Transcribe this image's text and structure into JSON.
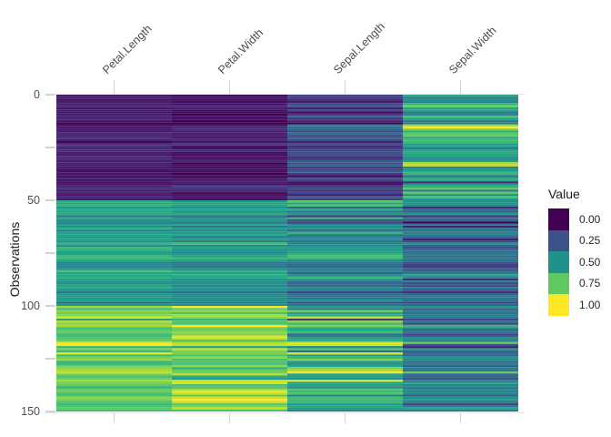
{
  "chart_data": {
    "type": "heatmap",
    "title": "",
    "x_categories": [
      "Petal.Length",
      "Petal.Width",
      "Sepal.Length",
      "Sepal.Width"
    ],
    "y_label": "Observations",
    "y_range": [
      0,
      150
    ],
    "n_rows": 150,
    "y_axis_ticks": [
      {
        "label": "0",
        "value": 0
      },
      {
        "label": "50",
        "value": 50
      },
      {
        "label": "100",
        "value": 100
      },
      {
        "label": "150",
        "value": 150
      }
    ],
    "y_axis_minor_ticks": [
      25,
      75,
      125
    ],
    "grid": false,
    "normalization": "per-column min-max scaling to [0,1]",
    "colormap": {
      "name": "viridis",
      "anchors": [
        "#440154",
        "#482475",
        "#414487",
        "#355f8d",
        "#2a788e",
        "#21918c",
        "#22a884",
        "#44bf70",
        "#7ad151",
        "#bddf26",
        "#fde725"
      ]
    },
    "legend": {
      "title": "Value",
      "position": "right",
      "entries": [
        {
          "label": "0.00",
          "value": 0.0
        },
        {
          "label": "0.25",
          "value": 0.25
        },
        {
          "label": "0.50",
          "value": 0.5
        },
        {
          "label": "0.75",
          "value": 0.75
        },
        {
          "label": "1.00",
          "value": 1.0
        }
      ]
    },
    "rows": [
      [
        1.4,
        0.2,
        5.1,
        3.5
      ],
      [
        1.4,
        0.2,
        4.9,
        3.0
      ],
      [
        1.3,
        0.2,
        4.7,
        3.2
      ],
      [
        1.5,
        0.2,
        4.6,
        3.1
      ],
      [
        1.4,
        0.2,
        5.0,
        3.6
      ],
      [
        1.7,
        0.4,
        5.4,
        3.9
      ],
      [
        1.4,
        0.3,
        4.6,
        3.4
      ],
      [
        1.5,
        0.2,
        5.0,
        3.4
      ],
      [
        1.4,
        0.2,
        4.4,
        2.9
      ],
      [
        1.5,
        0.1,
        4.9,
        3.1
      ],
      [
        1.5,
        0.2,
        5.4,
        3.7
      ],
      [
        1.6,
        0.2,
        4.8,
        3.4
      ],
      [
        1.4,
        0.1,
        4.8,
        3.0
      ],
      [
        1.1,
        0.1,
        4.3,
        3.0
      ],
      [
        1.2,
        0.2,
        5.8,
        4.0
      ],
      [
        1.5,
        0.4,
        5.7,
        4.4
      ],
      [
        1.3,
        0.4,
        5.4,
        3.9
      ],
      [
        1.4,
        0.3,
        5.1,
        3.5
      ],
      [
        1.7,
        0.3,
        5.7,
        3.8
      ],
      [
        1.5,
        0.3,
        5.1,
        3.8
      ],
      [
        1.7,
        0.2,
        5.4,
        3.4
      ],
      [
        1.5,
        0.4,
        5.1,
        3.7
      ],
      [
        1.0,
        0.2,
        4.6,
        3.6
      ],
      [
        1.7,
        0.5,
        5.1,
        3.3
      ],
      [
        1.9,
        0.2,
        4.8,
        3.4
      ],
      [
        1.6,
        0.2,
        5.0,
        3.0
      ],
      [
        1.6,
        0.4,
        5.0,
        3.4
      ],
      [
        1.5,
        0.2,
        5.2,
        3.5
      ],
      [
        1.4,
        0.2,
        5.2,
        3.4
      ],
      [
        1.6,
        0.2,
        4.7,
        3.2
      ],
      [
        1.6,
        0.2,
        4.8,
        3.1
      ],
      [
        1.5,
        0.4,
        5.4,
        3.4
      ],
      [
        1.5,
        0.1,
        5.2,
        4.1
      ],
      [
        1.4,
        0.2,
        5.5,
        4.2
      ],
      [
        1.5,
        0.2,
        4.9,
        3.1
      ],
      [
        1.2,
        0.2,
        5.0,
        3.2
      ],
      [
        1.3,
        0.2,
        5.5,
        3.5
      ],
      [
        1.4,
        0.1,
        4.9,
        3.6
      ],
      [
        1.3,
        0.2,
        4.4,
        3.0
      ],
      [
        1.5,
        0.2,
        5.1,
        3.4
      ],
      [
        1.3,
        0.3,
        5.0,
        3.5
      ],
      [
        1.3,
        0.3,
        4.5,
        2.3
      ],
      [
        1.3,
        0.2,
        4.4,
        3.2
      ],
      [
        1.6,
        0.6,
        5.0,
        3.5
      ],
      [
        1.9,
        0.4,
        5.1,
        3.8
      ],
      [
        1.4,
        0.3,
        4.8,
        3.0
      ],
      [
        1.6,
        0.2,
        5.1,
        3.8
      ],
      [
        1.4,
        0.2,
        4.6,
        3.2
      ],
      [
        1.5,
        0.2,
        5.3,
        3.7
      ],
      [
        1.4,
        0.2,
        5.0,
        3.3
      ],
      [
        4.7,
        1.4,
        7.0,
        3.2
      ],
      [
        4.5,
        1.5,
        6.4,
        3.2
      ],
      [
        4.9,
        1.5,
        6.9,
        3.1
      ],
      [
        4.0,
        1.3,
        5.5,
        2.3
      ],
      [
        4.6,
        1.5,
        6.5,
        2.8
      ],
      [
        4.5,
        1.3,
        5.7,
        2.8
      ],
      [
        4.7,
        1.6,
        6.3,
        3.3
      ],
      [
        3.3,
        1.0,
        4.9,
        2.4
      ],
      [
        4.6,
        1.3,
        6.6,
        2.9
      ],
      [
        3.9,
        1.4,
        5.2,
        2.7
      ],
      [
        3.5,
        1.0,
        5.0,
        2.0
      ],
      [
        4.2,
        1.5,
        5.9,
        3.0
      ],
      [
        4.0,
        1.0,
        6.0,
        2.2
      ],
      [
        4.7,
        1.4,
        6.1,
        2.9
      ],
      [
        3.6,
        1.3,
        5.6,
        2.9
      ],
      [
        4.4,
        1.4,
        6.7,
        3.1
      ],
      [
        4.5,
        1.5,
        5.6,
        3.0
      ],
      [
        4.1,
        1.0,
        5.8,
        2.7
      ],
      [
        4.5,
        1.5,
        6.2,
        2.2
      ],
      [
        3.9,
        1.1,
        5.6,
        2.5
      ],
      [
        4.8,
        1.8,
        5.9,
        3.2
      ],
      [
        4.0,
        1.3,
        6.1,
        2.8
      ],
      [
        4.9,
        1.5,
        6.3,
        2.5
      ],
      [
        4.7,
        1.2,
        6.1,
        2.8
      ],
      [
        4.3,
        1.3,
        6.4,
        2.9
      ],
      [
        4.4,
        1.4,
        6.6,
        3.0
      ],
      [
        4.8,
        1.4,
        6.8,
        2.8
      ],
      [
        5.0,
        1.7,
        6.7,
        3.0
      ],
      [
        4.5,
        1.5,
        6.0,
        2.9
      ],
      [
        3.5,
        1.0,
        5.7,
        2.6
      ],
      [
        3.8,
        1.1,
        5.5,
        2.4
      ],
      [
        3.7,
        1.0,
        5.5,
        2.4
      ],
      [
        3.9,
        1.2,
        5.8,
        2.7
      ],
      [
        5.1,
        1.6,
        6.0,
        2.7
      ],
      [
        4.5,
        1.5,
        5.4,
        3.0
      ],
      [
        4.5,
        1.6,
        6.0,
        3.4
      ],
      [
        4.7,
        1.5,
        6.7,
        3.1
      ],
      [
        4.4,
        1.3,
        6.3,
        2.3
      ],
      [
        4.1,
        1.3,
        5.6,
        3.0
      ],
      [
        4.0,
        1.3,
        5.5,
        2.5
      ],
      [
        4.4,
        1.2,
        5.5,
        2.6
      ],
      [
        4.6,
        1.4,
        6.1,
        3.0
      ],
      [
        4.0,
        1.2,
        5.8,
        2.6
      ],
      [
        3.3,
        1.0,
        5.0,
        2.3
      ],
      [
        4.2,
        1.3,
        5.6,
        2.7
      ],
      [
        4.2,
        1.2,
        5.7,
        3.0
      ],
      [
        4.2,
        1.3,
        5.7,
        2.9
      ],
      [
        4.3,
        1.3,
        6.2,
        2.9
      ],
      [
        3.0,
        1.1,
        5.1,
        2.5
      ],
      [
        4.1,
        1.3,
        5.7,
        2.8
      ],
      [
        6.0,
        2.5,
        6.3,
        3.3
      ],
      [
        5.1,
        1.9,
        5.8,
        2.7
      ],
      [
        5.9,
        2.1,
        7.1,
        3.0
      ],
      [
        5.6,
        1.8,
        6.3,
        2.9
      ],
      [
        5.8,
        2.2,
        6.5,
        3.0
      ],
      [
        6.6,
        2.1,
        7.6,
        3.0
      ],
      [
        4.5,
        1.7,
        4.9,
        2.5
      ],
      [
        6.3,
        1.8,
        7.3,
        2.9
      ],
      [
        5.8,
        1.8,
        6.7,
        2.5
      ],
      [
        6.1,
        2.5,
        7.2,
        3.6
      ],
      [
        5.1,
        2.0,
        6.5,
        3.2
      ],
      [
        5.3,
        1.9,
        6.4,
        2.7
      ],
      [
        5.5,
        2.1,
        6.8,
        3.0
      ],
      [
        5.0,
        2.0,
        5.7,
        2.5
      ],
      [
        5.1,
        2.4,
        5.8,
        2.8
      ],
      [
        5.3,
        2.3,
        6.4,
        3.2
      ],
      [
        5.5,
        1.8,
        6.5,
        3.0
      ],
      [
        6.7,
        2.2,
        7.7,
        3.8
      ],
      [
        6.9,
        2.3,
        7.7,
        2.6
      ],
      [
        5.0,
        1.5,
        6.0,
        2.2
      ],
      [
        5.7,
        2.3,
        6.9,
        3.2
      ],
      [
        4.9,
        2.0,
        5.6,
        2.8
      ],
      [
        6.7,
        2.0,
        7.7,
        2.8
      ],
      [
        4.9,
        1.8,
        6.3,
        2.7
      ],
      [
        5.7,
        2.1,
        6.7,
        3.3
      ],
      [
        6.0,
        1.8,
        7.2,
        3.2
      ],
      [
        4.8,
        1.8,
        6.2,
        2.8
      ],
      [
        4.9,
        1.8,
        6.1,
        3.0
      ],
      [
        5.6,
        2.1,
        6.4,
        2.8
      ],
      [
        5.8,
        1.6,
        7.2,
        3.0
      ],
      [
        6.1,
        1.9,
        7.4,
        2.8
      ],
      [
        6.4,
        2.0,
        7.9,
        3.8
      ],
      [
        5.6,
        2.2,
        6.4,
        2.8
      ],
      [
        5.1,
        1.5,
        6.3,
        2.8
      ],
      [
        5.6,
        1.4,
        6.1,
        2.6
      ],
      [
        6.1,
        2.3,
        7.7,
        3.0
      ],
      [
        5.6,
        2.4,
        6.3,
        3.4
      ],
      [
        5.5,
        1.8,
        6.4,
        3.1
      ],
      [
        4.8,
        1.8,
        6.0,
        3.0
      ],
      [
        5.4,
        2.1,
        6.9,
        3.1
      ],
      [
        5.6,
        2.4,
        6.7,
        3.1
      ],
      [
        5.1,
        2.3,
        6.9,
        3.1
      ],
      [
        5.1,
        1.9,
        5.8,
        2.7
      ],
      [
        5.9,
        2.3,
        6.8,
        3.2
      ],
      [
        5.7,
        2.5,
        6.7,
        3.3
      ],
      [
        5.2,
        2.3,
        6.7,
        3.0
      ],
      [
        5.0,
        1.9,
        6.3,
        2.5
      ],
      [
        5.2,
        2.0,
        6.5,
        3.0
      ],
      [
        5.4,
        2.3,
        6.2,
        3.4
      ],
      [
        5.1,
        1.8,
        5.9,
        3.0
      ]
    ]
  }
}
